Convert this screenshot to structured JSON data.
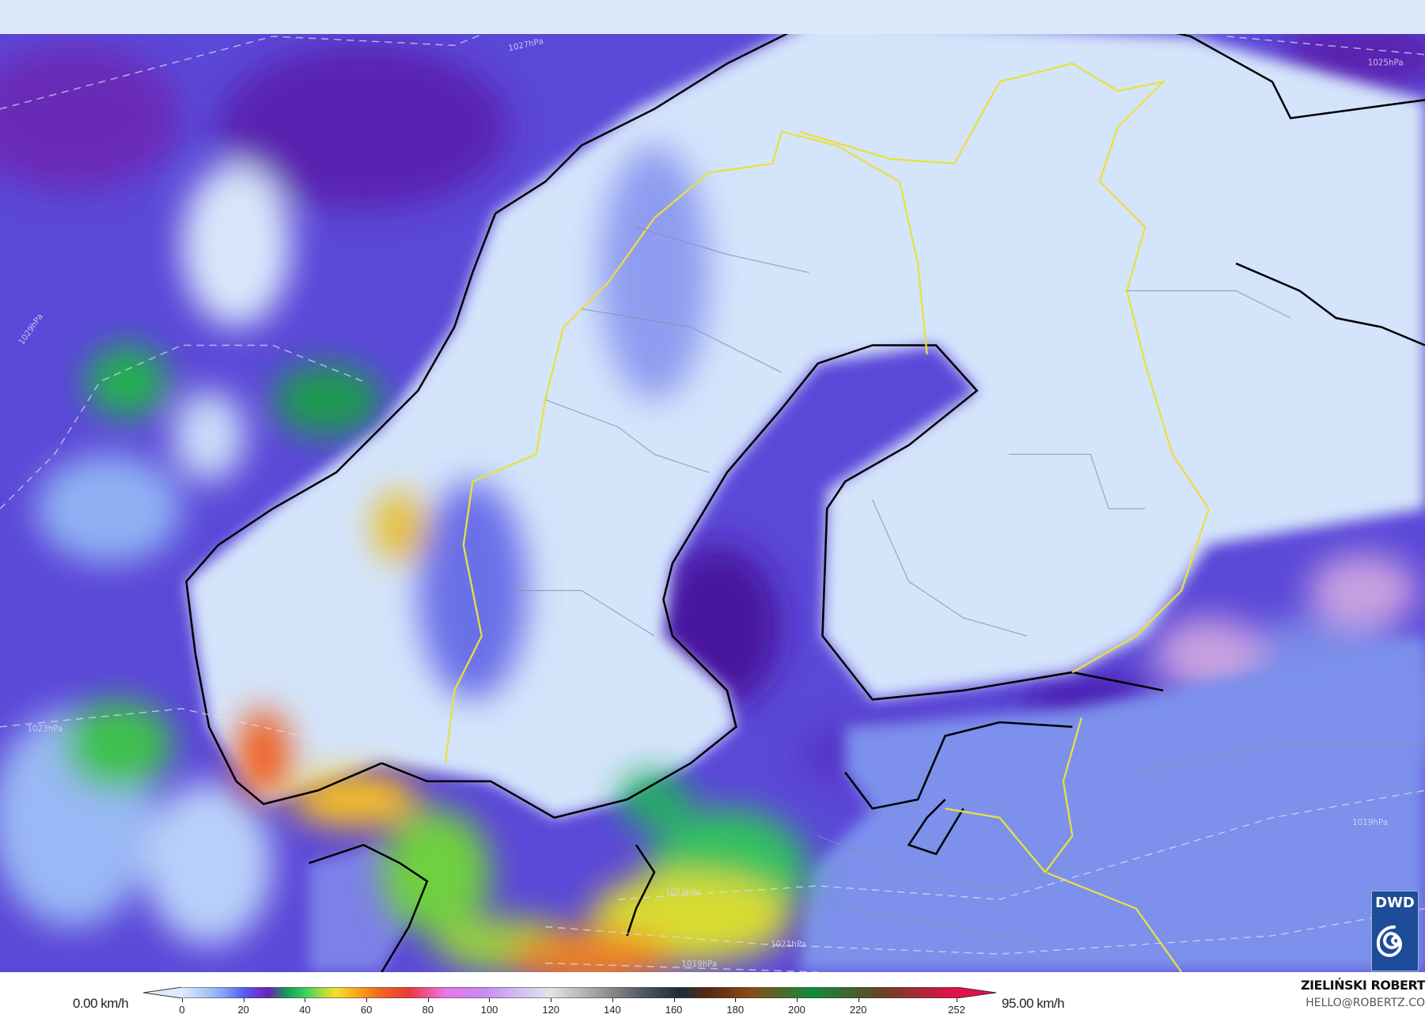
{
  "map": {
    "isobar_labels": [
      "1027hPa",
      "1029hPa",
      "1025hPa",
      "1023hPa",
      "1023hPa",
      "1021hPa",
      "1019hPa",
      "1019hPa"
    ],
    "colors": {
      "ocean": "#5b48d8",
      "land": "#d4e4fb",
      "coast": "#000000",
      "border_yellow": "#e8e040",
      "border_grey": "#8a8fa8",
      "top_band": "#dbe9f8"
    }
  },
  "logo": {
    "text": "DWD",
    "icon": "dwd-spiral-icon"
  },
  "legend": {
    "min_label": "0.00 km/h",
    "max_label": "95.00 km/h",
    "ticks": [
      "0",
      "20",
      "40",
      "60",
      "80",
      "100",
      "120",
      "140",
      "160",
      "180",
      "200",
      "220",
      "252"
    ],
    "tick_values": [
      0,
      20,
      40,
      60,
      80,
      100,
      120,
      140,
      160,
      180,
      200,
      220,
      252
    ],
    "range": [
      0,
      252
    ],
    "stops": [
      [
        0,
        "#dfeafc"
      ],
      [
        8,
        "#a8c6f7"
      ],
      [
        14,
        "#7fa0f8"
      ],
      [
        20,
        "#5b5cf0"
      ],
      [
        28,
        "#6a22b8"
      ],
      [
        34,
        "#1a9a55"
      ],
      [
        40,
        "#3ad060"
      ],
      [
        46,
        "#b0dc40"
      ],
      [
        50,
        "#f5de30"
      ],
      [
        56,
        "#f9b020"
      ],
      [
        64,
        "#f06a20"
      ],
      [
        74,
        "#e83a3a"
      ],
      [
        86,
        "#e878e8"
      ],
      [
        98,
        "#c58af2"
      ],
      [
        110,
        "#d0c0f5"
      ],
      [
        120,
        "#e3e3e3"
      ],
      [
        135,
        "#a0a0a0"
      ],
      [
        150,
        "#505860"
      ],
      [
        162,
        "#1e2a38"
      ],
      [
        172,
        "#5a2a12"
      ],
      [
        185,
        "#8a4a18"
      ],
      [
        205,
        "#118a3e"
      ],
      [
        228,
        "#6a4224"
      ],
      [
        252,
        "#e3104c"
      ]
    ]
  },
  "credit": {
    "author": "ZIELIŃSKI ROBERT",
    "email": "HELLO@ROBERTZ.CO"
  }
}
